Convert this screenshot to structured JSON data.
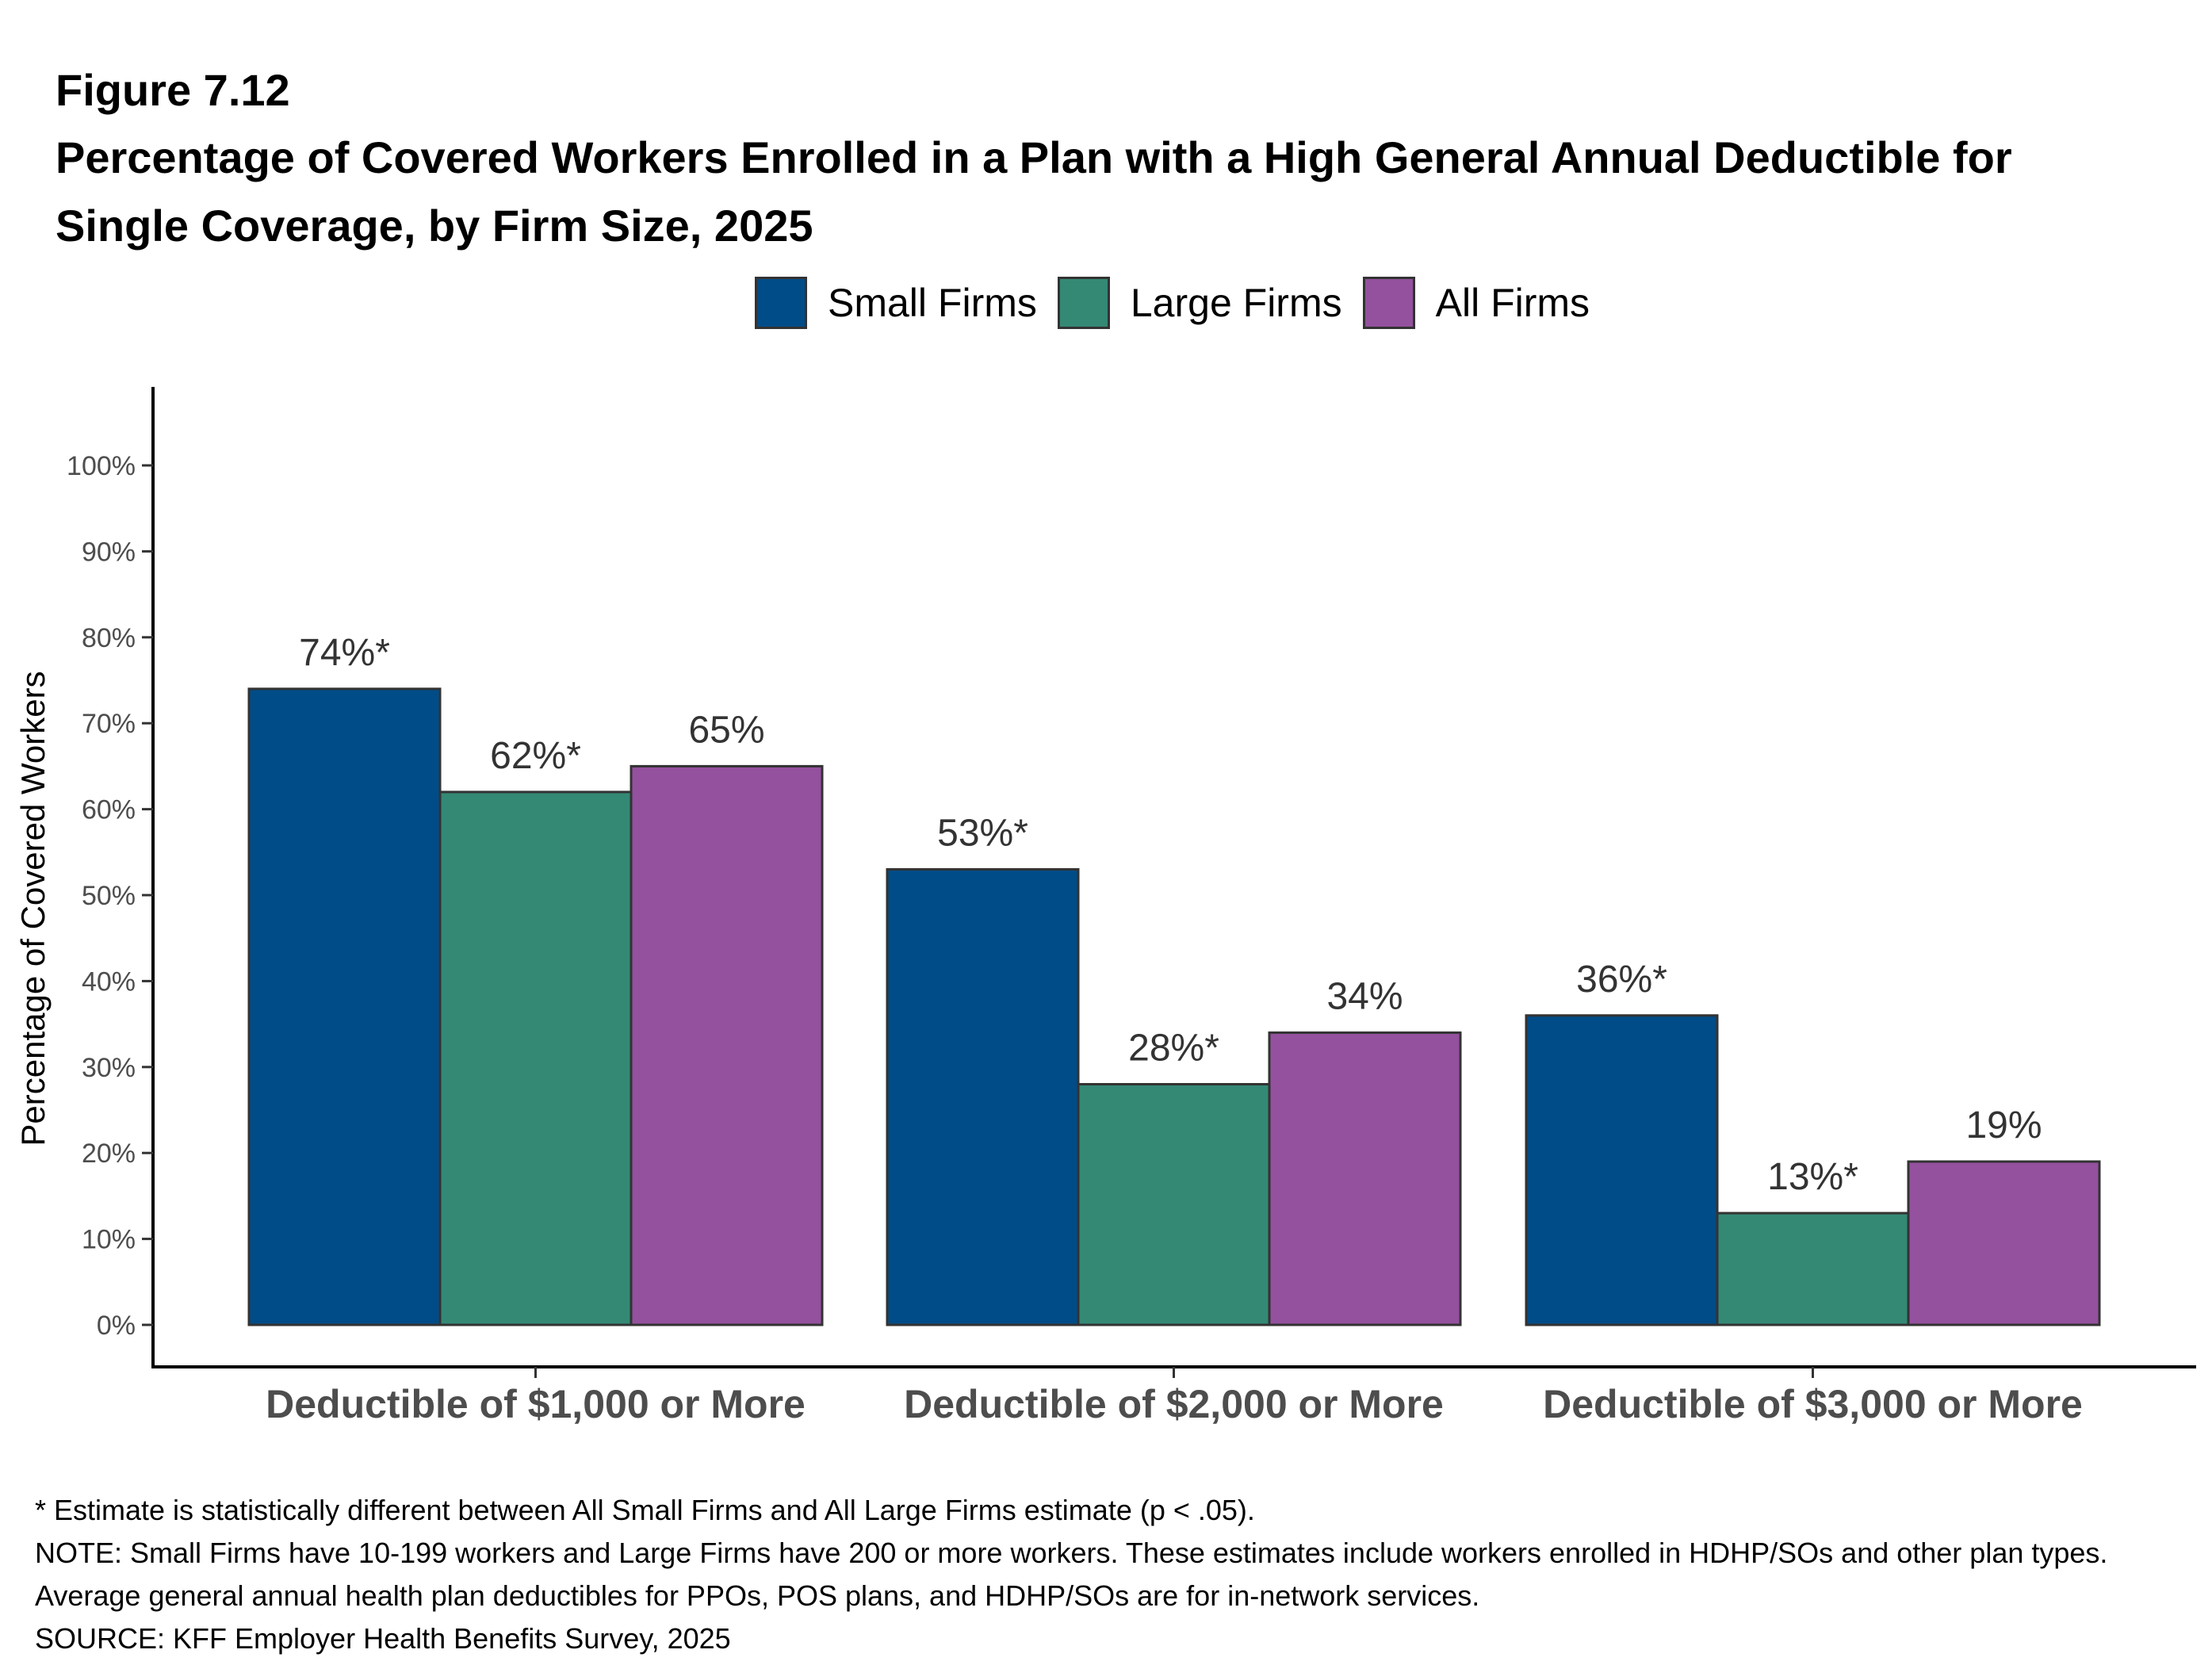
{
  "header": {
    "figure_label": "Figure 7.12",
    "title": "Percentage of Covered Workers Enrolled in a Plan with a High General Annual Deductible for Single Coverage, by Firm Size, 2025"
  },
  "legend": [
    {
      "label": "Small Firms",
      "color": "#004C88"
    },
    {
      "label": "Large Firms",
      "color": "#348975"
    },
    {
      "label": "All Firms",
      "color": "#94519E"
    }
  ],
  "chart_data": {
    "type": "bar",
    "categories": [
      "Deductible of $1,000 or More",
      "Deductible of $2,000 or More",
      "Deductible of $3,000 or More"
    ],
    "series": [
      {
        "name": "Small Firms",
        "color": "#004C88",
        "values": [
          74,
          53,
          36
        ],
        "labels": [
          "74%*",
          "53%*",
          "36%*"
        ]
      },
      {
        "name": "Large Firms",
        "color": "#348975",
        "values": [
          62,
          28,
          13
        ],
        "labels": [
          "62%*",
          "28%*",
          "13%*"
        ]
      },
      {
        "name": "All Firms",
        "color": "#94519E",
        "values": [
          65,
          34,
          19
        ],
        "labels": [
          "65%",
          "34%",
          "19%"
        ]
      }
    ],
    "ylabel": "Percentage of Covered Workers",
    "xlabel": "",
    "ylim": [
      0,
      100
    ],
    "yticks": [
      "0%",
      "10%",
      "20%",
      "30%",
      "40%",
      "50%",
      "60%",
      "70%",
      "80%",
      "90%",
      "100%"
    ],
    "grid": false,
    "legend_position": "top"
  },
  "footnotes": {
    "line1": "* Estimate is statistically different between All Small Firms and All Large Firms estimate (p < .05).",
    "line2": "NOTE: Small Firms have 10-199 workers and Large Firms have 200 or more workers. These estimates include workers enrolled in HDHP/SOs and other plan types. Average general annual health plan deductibles for PPOs, POS plans, and HDHP/SOs are for in-network services.",
    "line3": "SOURCE: KFF Employer Health Benefits Survey, 2025"
  }
}
